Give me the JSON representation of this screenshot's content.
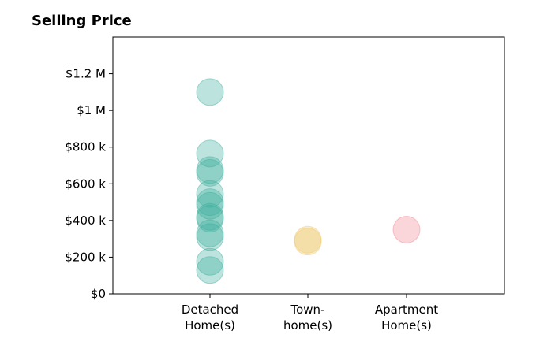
{
  "chart_data": {
    "type": "scatter",
    "title": "Selling Price",
    "xlabel": "",
    "ylabel": "",
    "categories": [
      {
        "lines": [
          "Detached",
          "Home(s)"
        ],
        "color": "#3fae9e"
      },
      {
        "lines": [
          "Town-",
          "home(s)"
        ],
        "color": "#edc86a"
      },
      {
        "lines": [
          "Apartment",
          "Home(s)"
        ],
        "color": "#f08892"
      }
    ],
    "ylim": [
      0,
      1400000
    ],
    "yticks": [
      {
        "value": 0,
        "label": "$0"
      },
      {
        "value": 200000,
        "label": "$200 k"
      },
      {
        "value": 400000,
        "label": "$400 k"
      },
      {
        "value": 600000,
        "label": "$600 k"
      },
      {
        "value": 800000,
        "label": "$800 k"
      },
      {
        "value": 1000000,
        "label": "$1 M"
      },
      {
        "value": 1200000,
        "label": "$1.2 M"
      }
    ],
    "series": [
      {
        "category": 0,
        "values": [
          1100000,
          765000,
          675000,
          660000,
          545000,
          500000,
          480000,
          420000,
          410000,
          330000,
          310000,
          175000,
          130000
        ]
      },
      {
        "category": 1,
        "values": [
          295000,
          285000
        ]
      },
      {
        "category": 2,
        "values": [
          350000
        ]
      }
    ],
    "grid": false,
    "legend": "none"
  }
}
